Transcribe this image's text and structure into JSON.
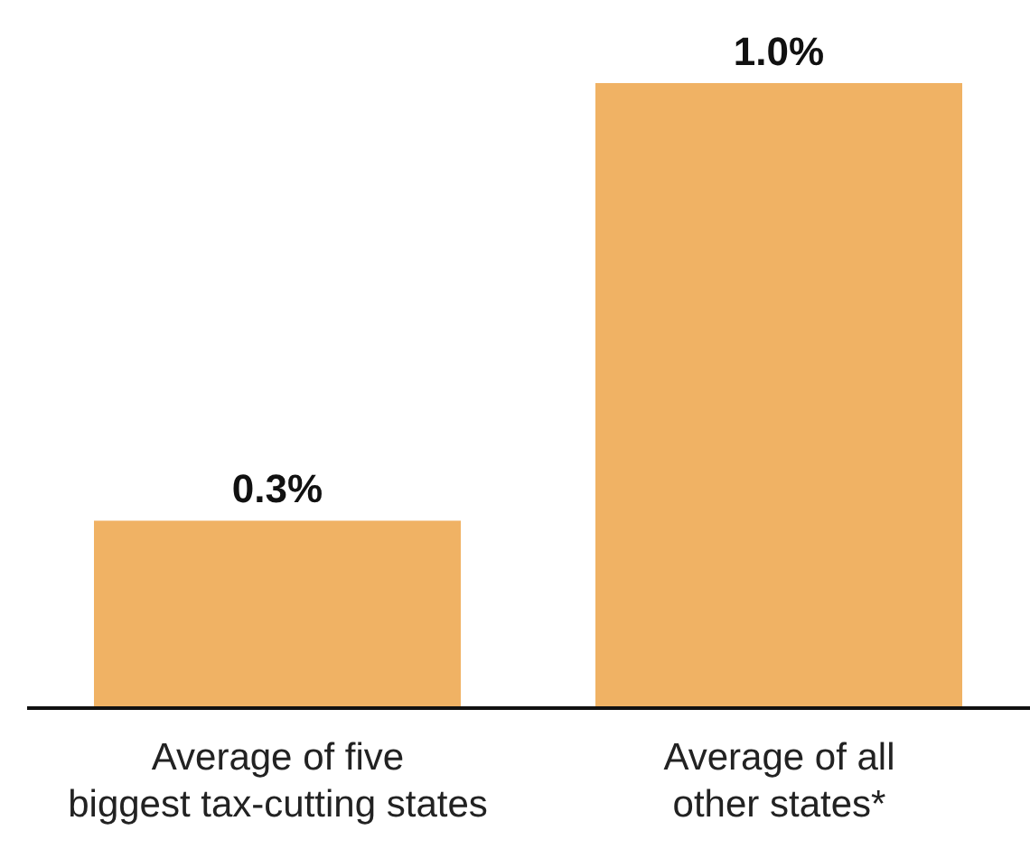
{
  "chart_data": {
    "type": "bar",
    "categories": [
      "Average of five\nbiggest tax-cutting states",
      "Average of all\nother states*"
    ],
    "values": [
      0.3,
      1.0
    ],
    "color": "#f0b264",
    "value_labels": [
      "0.3%",
      "1.0%"
    ],
    "tick_labels": "x"
  }
}
